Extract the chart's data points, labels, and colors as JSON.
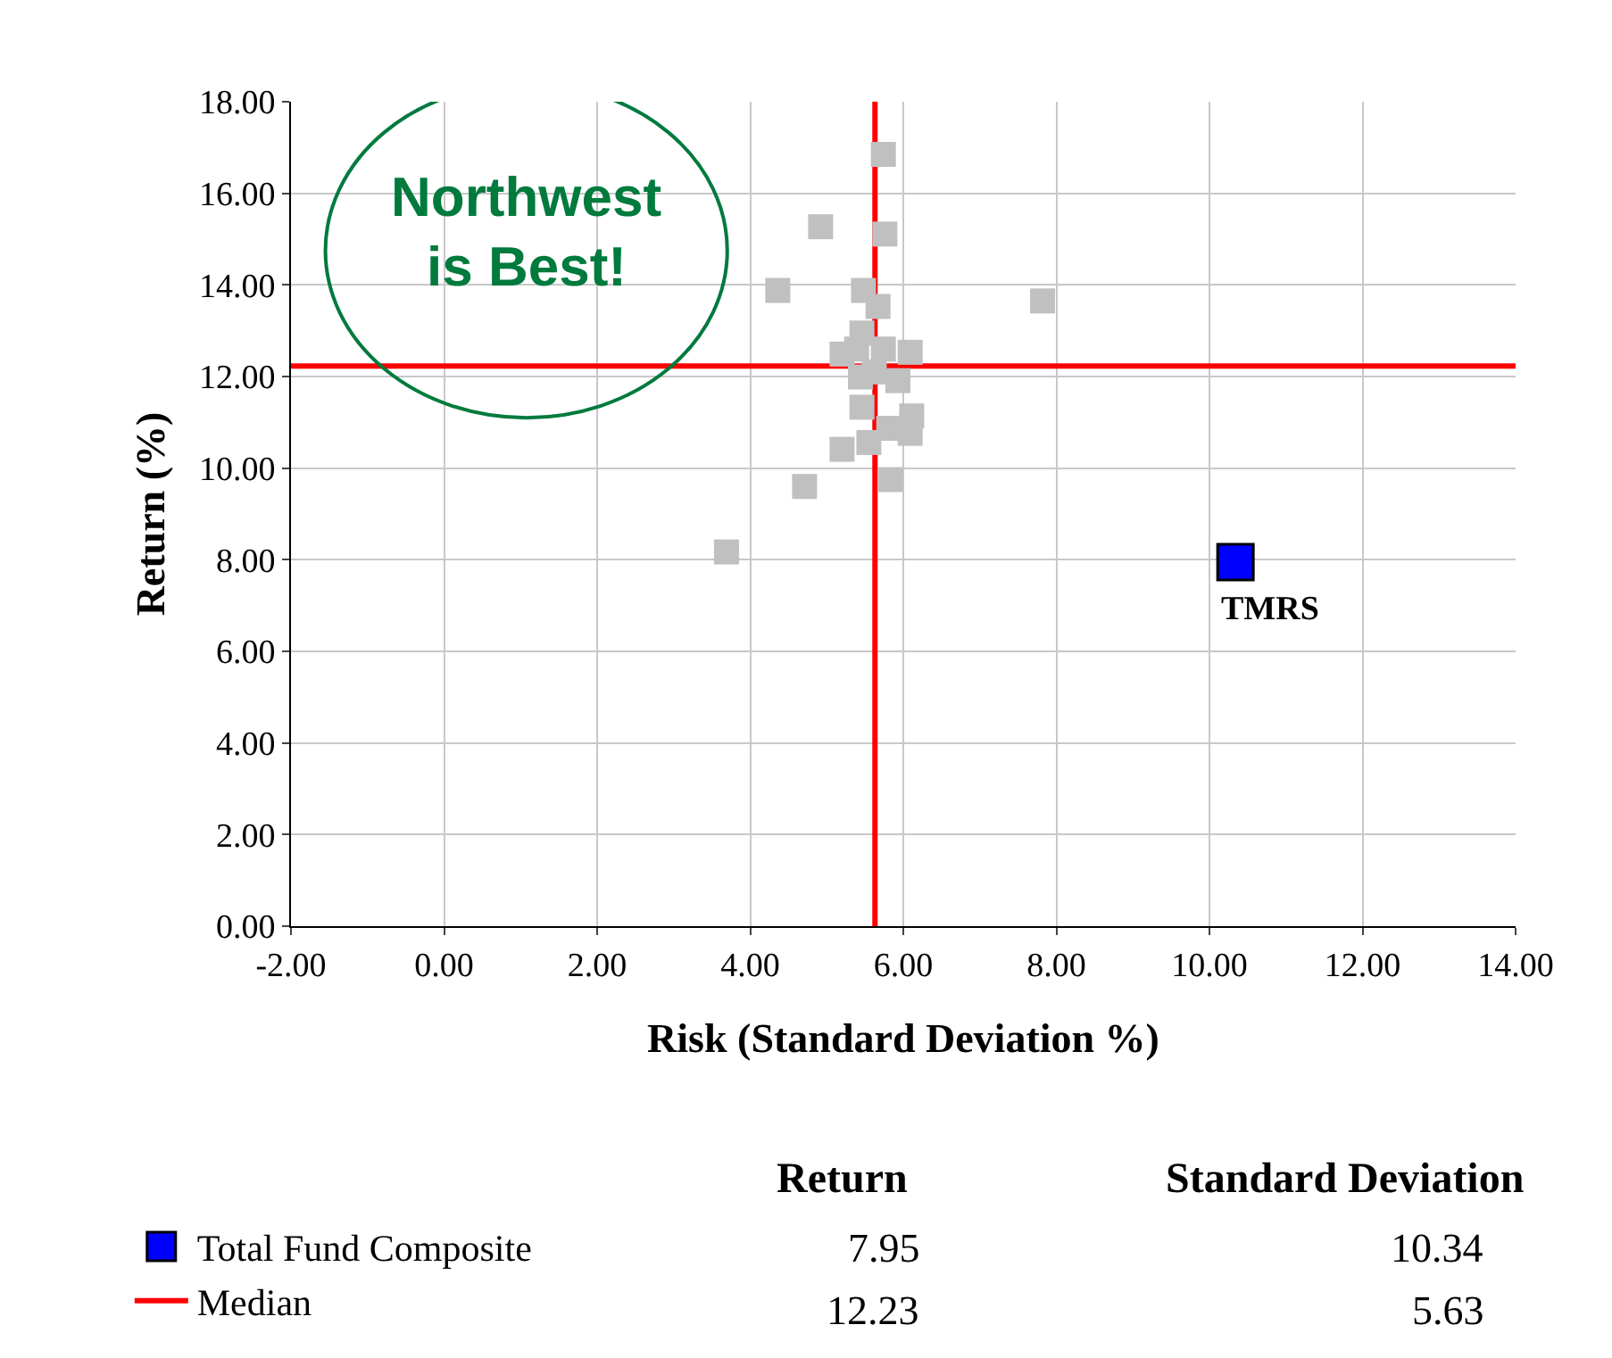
{
  "chart_data": {
    "type": "scatter",
    "xlabel": "Risk (Standard Deviation %)",
    "ylabel": "Return (%)",
    "xlim": [
      -2,
      14
    ],
    "xticks": [
      {
        "value": -2,
        "label": "-2.00"
      },
      {
        "value": 0,
        "label": "0.00"
      },
      {
        "value": 2,
        "label": "2.00"
      },
      {
        "value": 4,
        "label": "4.00"
      },
      {
        "value": 6,
        "label": "6.00"
      },
      {
        "value": 8,
        "label": "8.00"
      },
      {
        "value": 10,
        "label": "10.00"
      },
      {
        "value": 12,
        "label": "12.00"
      },
      {
        "value": 14,
        "label": "14.00"
      }
    ],
    "ylim": [
      0,
      18
    ],
    "yticks": [
      {
        "value": 0,
        "label": "0.00"
      },
      {
        "value": 2,
        "label": "2.00"
      },
      {
        "value": 4,
        "label": "4.00"
      },
      {
        "value": 6,
        "label": "6.00"
      },
      {
        "value": 8,
        "label": "8.00"
      },
      {
        "value": 10,
        "label": "10.00"
      },
      {
        "value": 12,
        "label": "12.00"
      },
      {
        "value": 14,
        "label": "14.00"
      },
      {
        "value": 16,
        "label": "16.00"
      },
      {
        "value": 18,
        "label": "18.00"
      }
    ],
    "grid": true,
    "marker": "square",
    "legend": "bottom left",
    "series": [
      {
        "color": "#c0c0c0",
        "x": [
          5.74,
          4.92,
          5.76,
          4.36,
          5.48,
          5.67,
          7.82,
          5.46,
          5.2,
          5.39,
          5.74,
          6.09,
          5.44,
          5.62,
          5.93,
          5.46,
          5.81,
          6.11,
          6.09,
          5.55,
          5.2,
          5.83,
          4.71,
          3.69
        ],
        "values": [
          16.85,
          15.27,
          15.11,
          13.88,
          13.88,
          13.53,
          13.65,
          12.95,
          12.49,
          12.6,
          12.6,
          12.53,
          11.99,
          12.1,
          11.91,
          11.33,
          10.87,
          11.14,
          10.76,
          10.56,
          10.41,
          9.75,
          9.6,
          8.17
        ]
      },
      {
        "name": "Total Fund Composite",
        "color": "#0000ff",
        "x": [
          10.34
        ],
        "values": [
          7.95
        ]
      }
    ],
    "ref_lines": [
      {
        "axis": "x",
        "value": 5.63,
        "label": "Median",
        "color": "#ff0000"
      },
      {
        "axis": "y",
        "value": 12.23,
        "color": "#ff0000"
      }
    ],
    "annotations": [
      {
        "text": "TMRS",
        "x": 10.34,
        "y": 7.95
      },
      "Northwest",
      "is Best!",
      "Return",
      "Standard Deviation",
      "7.95",
      "10.34",
      "12.23",
      "5.63"
    ]
  }
}
